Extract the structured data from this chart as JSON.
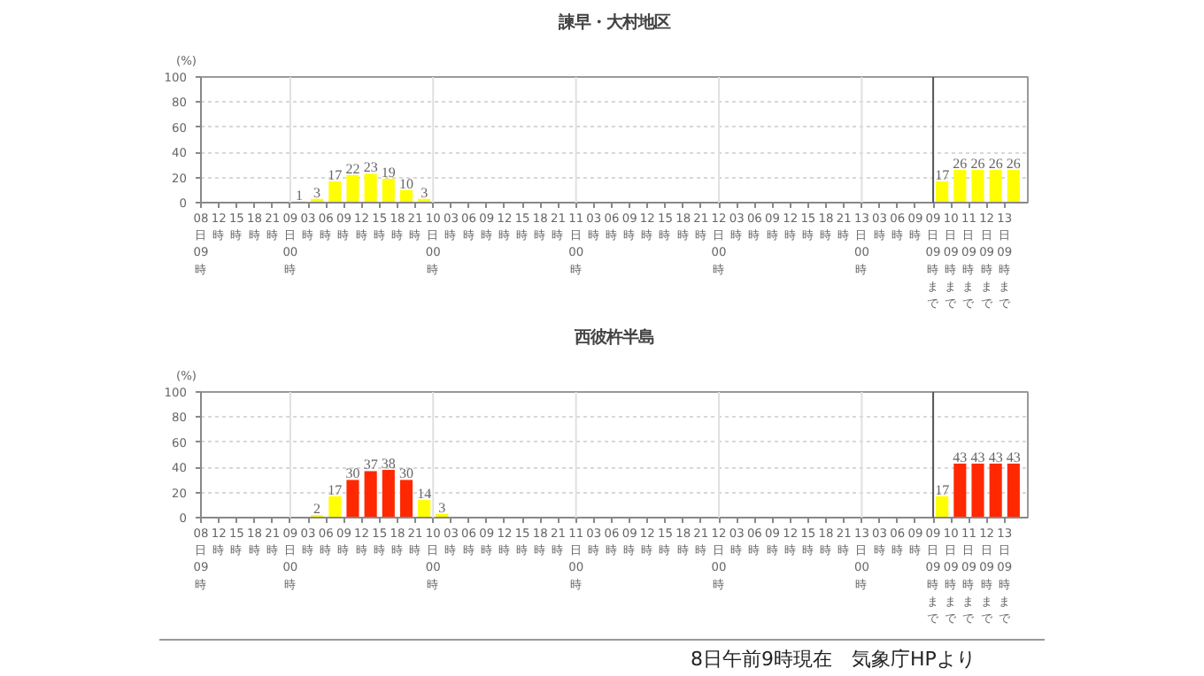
{
  "chart_data": [
    {
      "type": "bar",
      "title": "諫早・大村地区",
      "ylabel": "(%)",
      "ylim": [
        0,
        100
      ],
      "yticks": [
        0,
        20,
        40,
        60,
        80,
        100
      ],
      "grid": "y",
      "data_labels": true,
      "categories": [
        "08日09時",
        "12時",
        "15時",
        "18時",
        "21時",
        "09日00時",
        "03時",
        "06時",
        "09時",
        "12時",
        "15時",
        "18時",
        "21時",
        "10日00時",
        "03時",
        "06時",
        "09時",
        "12時",
        "15時",
        "18時",
        "21時",
        "11日00時",
        "03時",
        "06時",
        "09時",
        "12時",
        "15時",
        "18時",
        "21時",
        "12日00時",
        "03時",
        "06時",
        "09時",
        "12時",
        "15時",
        "18時",
        "21時",
        "13日00時",
        "03時",
        "06時",
        "09時",
        "09日09時まで",
        "10日09時まで",
        "11日09時まで",
        "12日09時まで",
        "13日09時まで"
      ],
      "values": [
        null,
        null,
        null,
        null,
        null,
        1,
        3,
        17,
        22,
        23,
        19,
        10,
        3,
        null,
        null,
        null,
        null,
        null,
        null,
        null,
        null,
        null,
        null,
        null,
        null,
        null,
        null,
        null,
        null,
        null,
        null,
        null,
        null,
        null,
        null,
        null,
        null,
        null,
        null,
        null,
        null,
        17,
        26,
        26,
        26,
        26
      ],
      "colors": [
        null,
        null,
        null,
        null,
        null,
        "#ffff00",
        "#ffff00",
        "#ffff00",
        "#ffff00",
        "#ffff00",
        "#ffff00",
        "#ffff00",
        "#ffff00",
        null,
        null,
        null,
        null,
        null,
        null,
        null,
        null,
        null,
        null,
        null,
        null,
        null,
        null,
        null,
        null,
        null,
        null,
        null,
        null,
        null,
        null,
        null,
        null,
        null,
        null,
        null,
        null,
        "#ffff00",
        "#ffff00",
        "#ffff00",
        "#ffff00",
        "#ffff00"
      ],
      "ref_lines": [
        {
          "axis": "x",
          "value": "09日00時",
          "color": "#e0e0e0"
        },
        {
          "axis": "x",
          "value": "10日00時",
          "color": "#e0e0e0"
        },
        {
          "axis": "x",
          "value": "11日00時",
          "color": "#e0e0e0"
        },
        {
          "axis": "x",
          "value": "12日00時",
          "color": "#e0e0e0"
        },
        {
          "axis": "x",
          "value": "13日00時",
          "color": "#e0e0e0"
        },
        {
          "axis": "x",
          "value": "09日09時まで",
          "color": "#555555"
        }
      ]
    },
    {
      "type": "bar",
      "title": "西彼杵半島",
      "ylabel": "(%)",
      "ylim": [
        0,
        100
      ],
      "yticks": [
        0,
        20,
        40,
        60,
        80,
        100
      ],
      "grid": "y",
      "data_labels": true,
      "categories": [
        "08日09時",
        "12時",
        "15時",
        "18時",
        "21時",
        "09日00時",
        "03時",
        "06時",
        "09時",
        "12時",
        "15時",
        "18時",
        "21時",
        "10日00時",
        "03時",
        "06時",
        "09時",
        "12時",
        "15時",
        "18時",
        "21時",
        "11日00時",
        "03時",
        "06時",
        "09時",
        "12時",
        "15時",
        "18時",
        "21時",
        "12日00時",
        "03時",
        "06時",
        "09時",
        "12時",
        "15時",
        "18時",
        "21時",
        "13日00時",
        "03時",
        "06時",
        "09時",
        "09日09時まで",
        "10日09時まで",
        "11日09時まで",
        "12日09時まで",
        "13日09時まで"
      ],
      "values": [
        null,
        null,
        null,
        null,
        null,
        null,
        2,
        17,
        30,
        37,
        38,
        30,
        14,
        3,
        null,
        null,
        null,
        null,
        null,
        null,
        null,
        null,
        null,
        null,
        null,
        null,
        null,
        null,
        null,
        null,
        null,
        null,
        null,
        null,
        null,
        null,
        null,
        null,
        null,
        null,
        null,
        17,
        43,
        43,
        43,
        43
      ],
      "colors": [
        null,
        null,
        null,
        null,
        null,
        null,
        "#ffff00",
        "#ffff00",
        "#ff2800",
        "#ff2800",
        "#ff2800",
        "#ff2800",
        "#ffff00",
        "#ffff00",
        null,
        null,
        null,
        null,
        null,
        null,
        null,
        null,
        null,
        null,
        null,
        null,
        null,
        null,
        null,
        null,
        null,
        null,
        null,
        null,
        null,
        null,
        null,
        null,
        null,
        null,
        null,
        "#ffff00",
        "#ff2800",
        "#ff2800",
        "#ff2800",
        "#ff2800"
      ],
      "ref_lines": [
        {
          "axis": "x",
          "value": "09日00時",
          "color": "#e0e0e0"
        },
        {
          "axis": "x",
          "value": "10日00時",
          "color": "#e0e0e0"
        },
        {
          "axis": "x",
          "value": "11日00時",
          "color": "#e0e0e0"
        },
        {
          "axis": "x",
          "value": "12日00時",
          "color": "#e0e0e0"
        },
        {
          "axis": "x",
          "value": "13日00時",
          "color": "#e0e0e0"
        },
        {
          "axis": "x",
          "value": "09日09時まで",
          "color": "#555555"
        }
      ],
      "annotations": [
        "8日午前9時現在　気象庁HPより"
      ]
    }
  ]
}
